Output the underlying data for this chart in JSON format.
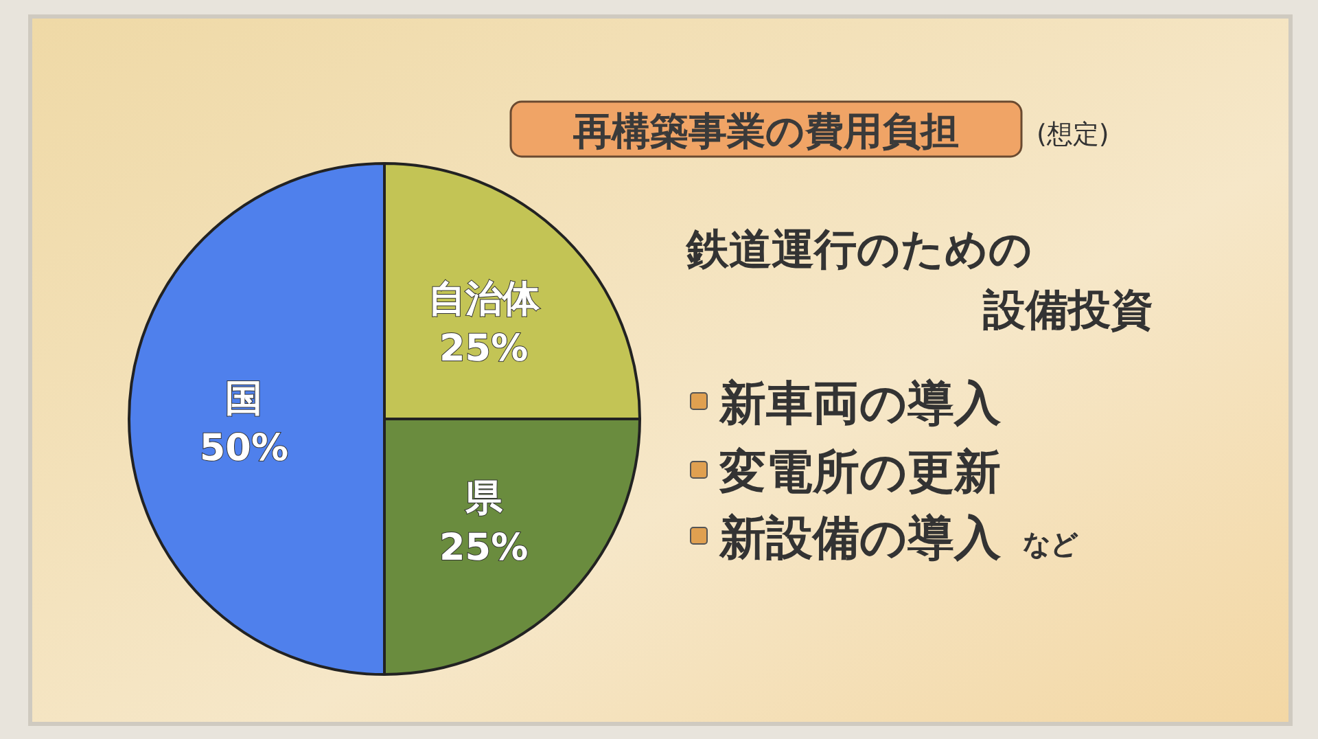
{
  "chart_data": {
    "type": "pie",
    "title": "再構築事業の費用負担",
    "subtitle": "(想定)",
    "categories": [
      "自治体",
      "県",
      "国"
    ],
    "values": [
      25,
      25,
      50
    ],
    "colors": [
      "#c3c455",
      "#6a8c3e",
      "#4f80ec"
    ],
    "value_labels": [
      "25%",
      "25%",
      "50%"
    ],
    "annotations": [
      "鉄道運行のための",
      "設備投資",
      "新車両の導入",
      "変電所の更新",
      "新設備の導入",
      "など"
    ]
  }
}
